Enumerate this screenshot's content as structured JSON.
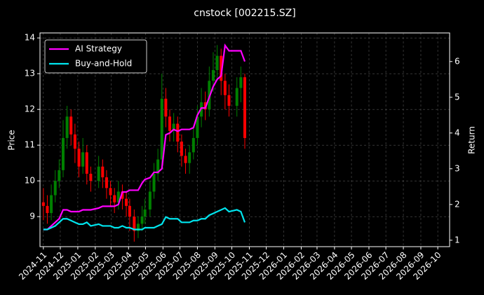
{
  "chart_data": {
    "type": "candlestick",
    "title": "cnstock [002215.SZ]",
    "ylabel": "Price",
    "y2label": "Return",
    "x": [
      "2024-11-01",
      "2024-11-08",
      "2024-11-15",
      "2024-11-22",
      "2024-11-29",
      "2024-12-06",
      "2024-12-13",
      "2024-12-20",
      "2024-12-27",
      "2025-01-03",
      "2025-01-10",
      "2025-01-17",
      "2025-01-24",
      "2025-02-07",
      "2025-02-14",
      "2025-02-21",
      "2025-02-28",
      "2025-03-07",
      "2025-03-14",
      "2025-03-21",
      "2025-03-28",
      "2025-04-03",
      "2025-04-11",
      "2025-04-18",
      "2025-04-25",
      "2025-04-30",
      "2025-05-09",
      "2025-05-16",
      "2025-05-23",
      "2025-05-30",
      "2025-06-06",
      "2025-06-13",
      "2025-06-20",
      "2025-06-27",
      "2025-07-04",
      "2025-07-11",
      "2025-07-18",
      "2025-07-25",
      "2025-08-01",
      "2025-08-08",
      "2025-08-15",
      "2025-08-22",
      "2025-08-29",
      "2025-09-05",
      "2025-09-12",
      "2025-09-19",
      "2025-09-26",
      "2025-10-10",
      "2025-10-17",
      "2025-10-24"
    ],
    "open": [
      9.4,
      9.3,
      9.1,
      9.6,
      10.0,
      10.3,
      11.2,
      11.8,
      11.3,
      10.9,
      10.4,
      10.8,
      10.2,
      10.0,
      10.4,
      10.1,
      9.8,
      9.6,
      9.4,
      9.7,
      9.5,
      9.3,
      9.0,
      8.6,
      8.8,
      9.0,
      9.2,
      9.7,
      10.2,
      10.6,
      12.3,
      11.8,
      11.4,
      11.6,
      11.1,
      10.7,
      10.5,
      10.8,
      11.2,
      11.8,
      12.2,
      12.0,
      12.8,
      13.1,
      13.5,
      12.8,
      12.4,
      12.1,
      12.6,
      12.9
    ],
    "high": [
      9.8,
      9.6,
      9.9,
      10.3,
      10.6,
      11.7,
      12.1,
      12.0,
      11.6,
      11.1,
      11.2,
      11.0,
      10.4,
      10.7,
      10.6,
      10.3,
      10.0,
      9.8,
      10.0,
      9.9,
      9.7,
      9.5,
      9.2,
      9.0,
      9.3,
      9.5,
      10.0,
      10.5,
      10.9,
      13.0,
      12.6,
      12.0,
      11.9,
      11.8,
      11.3,
      10.9,
      11.0,
      11.5,
      12.1,
      12.6,
      12.5,
      13.2,
      13.6,
      13.8,
      13.7,
      13.0,
      12.7,
      12.9,
      13.2,
      13.0
    ],
    "low": [
      8.9,
      8.8,
      8.9,
      9.4,
      9.8,
      10.1,
      10.9,
      11.0,
      10.5,
      10.1,
      10.2,
      9.9,
      9.7,
      9.8,
      9.8,
      9.5,
      9.3,
      9.1,
      9.2,
      9.2,
      9.0,
      8.6,
      8.3,
      8.4,
      8.6,
      8.8,
      9.0,
      9.5,
      10.0,
      10.4,
      11.5,
      11.1,
      11.1,
      10.8,
      10.4,
      10.2,
      10.2,
      10.6,
      11.0,
      11.5,
      11.7,
      11.8,
      12.5,
      12.8,
      12.4,
      12.0,
      11.8,
      11.8,
      12.2,
      10.9
    ],
    "close": [
      9.3,
      9.1,
      9.6,
      10.0,
      10.3,
      11.2,
      11.8,
      11.3,
      10.9,
      10.4,
      10.8,
      10.2,
      10.0,
      10.4,
      10.1,
      9.8,
      9.6,
      9.4,
      9.7,
      9.5,
      9.3,
      9.0,
      8.6,
      8.8,
      9.0,
      9.2,
      9.7,
      10.2,
      10.6,
      12.3,
      11.8,
      11.4,
      11.6,
      11.1,
      10.7,
      10.5,
      10.8,
      11.2,
      11.8,
      12.2,
      12.0,
      12.8,
      13.1,
      13.5,
      12.8,
      12.4,
      12.1,
      12.6,
      12.9,
      11.2
    ],
    "up_color": "#008000",
    "down_color": "#ff0000",
    "series": [
      {
        "name": "AI Strategy",
        "color": "#ff00ff",
        "axis": "y2",
        "values": [
          1.3,
          1.3,
          1.4,
          1.5,
          1.6,
          1.85,
          1.85,
          1.8,
          1.8,
          1.8,
          1.85,
          1.85,
          1.85,
          1.9,
          1.95,
          1.95,
          1.95,
          1.95,
          2.0,
          2.35,
          2.35,
          2.4,
          2.4,
          2.4,
          2.6,
          2.7,
          2.75,
          2.9,
          2.9,
          3.0,
          3.95,
          4.0,
          4.1,
          4.05,
          4.1,
          4.1,
          4.1,
          4.15,
          4.5,
          4.7,
          4.7,
          5.0,
          5.3,
          5.5,
          5.6,
          6.45,
          6.3,
          6.3,
          6.3,
          6.0
        ]
      },
      {
        "name": "Buy-and-Hold",
        "color": "#00e5ee",
        "axis": "y2",
        "values": [
          1.3,
          1.3,
          1.35,
          1.4,
          1.5,
          1.6,
          1.6,
          1.55,
          1.5,
          1.45,
          1.45,
          1.5,
          1.4,
          1.45,
          1.4,
          1.4,
          1.4,
          1.35,
          1.35,
          1.4,
          1.35,
          1.35,
          1.3,
          1.3,
          1.3,
          1.35,
          1.35,
          1.35,
          1.4,
          1.45,
          1.65,
          1.6,
          1.6,
          1.6,
          1.5,
          1.5,
          1.5,
          1.55,
          1.55,
          1.6,
          1.6,
          1.7,
          1.75,
          1.8,
          1.85,
          1.9,
          1.8,
          1.85,
          1.8,
          1.5
        ]
      }
    ],
    "xlim": [
      "2024-10-26",
      "2026-10-22"
    ],
    "xticks": [
      "2024-11",
      "2024-12",
      "2025-01",
      "2025-02",
      "2025-03",
      "2025-04",
      "2025-05",
      "2025-06",
      "2025-07",
      "2025-08",
      "2025-09",
      "2025-10",
      "2025-11",
      "2025-12",
      "2026-01",
      "2026-02",
      "2026-03",
      "2026-04",
      "2026-05",
      "2026-06",
      "2026-07",
      "2026-08",
      "2026-09",
      "2026-10"
    ],
    "ylim": [
      8.16,
      14.14
    ],
    "yticks": [
      9,
      10,
      11,
      12,
      13,
      14
    ],
    "y2lim": [
      0.82,
      6.8
    ],
    "y2ticks": [
      1,
      2,
      3,
      4,
      5,
      6
    ],
    "grid": true,
    "legend": "upper left"
  }
}
